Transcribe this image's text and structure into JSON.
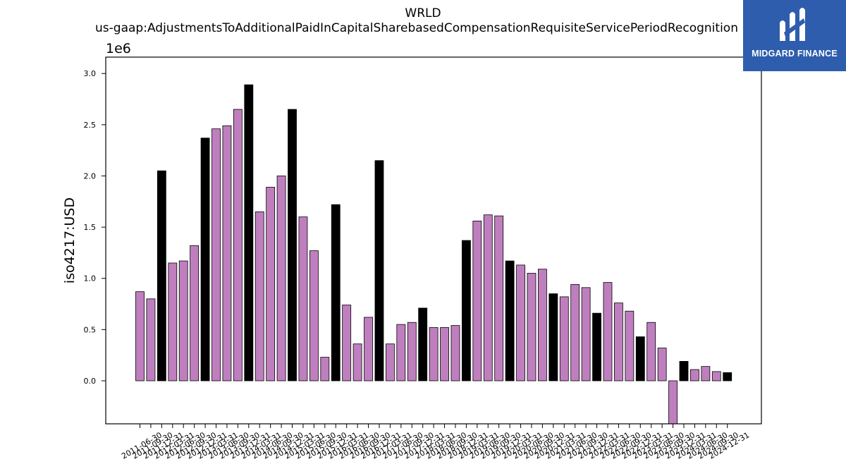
{
  "logo": {
    "text": "MIDGARD FINANCE",
    "background": "#2f5dad"
  },
  "chart_data": {
    "type": "bar",
    "title": "WRLD",
    "subtitle": "us-gaap:AdjustmentsToAdditionalPaidInCapitalSharebasedCompensationRequisiteServicePeriodRecognition",
    "ylabel": "iso4217:USD",
    "y_multiplier": "1e6",
    "ylim": [
      -0.42,
      3.16
    ],
    "yticks": [
      0.0,
      0.5,
      1.0,
      1.5,
      2.0,
      2.5,
      3.0
    ],
    "ytick_labels": [
      "0.0",
      "0.5",
      "1.0",
      "1.5",
      "2.0",
      "2.5",
      "3.0"
    ],
    "grid": false,
    "colors": {
      "quarter": "#bf7fbf",
      "fiscal_year_end": "#000000",
      "edge": "#000000"
    },
    "categories": [
      "2011-06-30",
      "2011-09-30",
      "2011-12-31",
      "2012-03-31",
      "2012-06-30",
      "2012-09-30",
      "2012-12-31",
      "2013-03-31",
      "2013-06-30",
      "2013-09-30",
      "2013-12-31",
      "2014-03-31",
      "2014-06-30",
      "2014-09-30",
      "2014-12-31",
      "2015-03-31",
      "2015-06-30",
      "2015-09-30",
      "2015-12-31",
      "2016-03-31",
      "2016-06-30",
      "2016-09-30",
      "2016-12-31",
      "2017-03-31",
      "2017-06-30",
      "2017-09-30",
      "2017-12-31",
      "2018-03-31",
      "2018-06-30",
      "2018-09-30",
      "2018-12-31",
      "2019-03-31",
      "2019-06-30",
      "2019-09-30",
      "2019-12-31",
      "2020-03-31",
      "2020-06-30",
      "2020-09-30",
      "2020-12-31",
      "2021-03-31",
      "2021-06-30",
      "2021-09-30",
      "2021-12-31",
      "2022-03-31",
      "2022-06-30",
      "2022-09-30",
      "2022-12-31",
      "2023-03-31",
      "2023-06-30",
      "2023-09-30",
      "2023-12-31",
      "2024-03-31",
      "2024-06-30",
      "2024-09-30",
      "2024-12-31"
    ],
    "values": [
      0.87,
      0.8,
      2.05,
      1.15,
      1.17,
      1.32,
      2.37,
      2.46,
      2.49,
      2.65,
      2.89,
      1.65,
      1.89,
      2.0,
      2.65,
      1.6,
      1.27,
      0.23,
      1.72,
      0.74,
      0.36,
      0.62,
      2.15,
      0.36,
      0.55,
      0.57,
      0.71,
      0.52,
      0.52,
      0.54,
      1.37,
      1.56,
      1.62,
      1.61,
      1.17,
      1.13,
      1.05,
      1.09,
      0.85,
      0.82,
      0.94,
      0.91,
      0.66,
      0.96,
      0.76,
      0.68,
      0.43,
      0.57,
      0.32,
      -0.45,
      0.19,
      0.11,
      0.14,
      0.09,
      0.08
    ],
    "bar_kind": [
      "q",
      "q",
      "fy",
      "q",
      "q",
      "q",
      "fy",
      "q",
      "q",
      "q",
      "fy",
      "q",
      "q",
      "q",
      "fy",
      "q",
      "q",
      "q",
      "fy",
      "q",
      "q",
      "q",
      "fy",
      "q",
      "q",
      "q",
      "fy",
      "q",
      "q",
      "q",
      "fy",
      "q",
      "q",
      "q",
      "fy",
      "q",
      "q",
      "q",
      "fy",
      "q",
      "q",
      "q",
      "fy",
      "q",
      "q",
      "q",
      "fy",
      "q",
      "q",
      "q",
      "fy",
      "q",
      "q",
      "q",
      "fy"
    ]
  }
}
